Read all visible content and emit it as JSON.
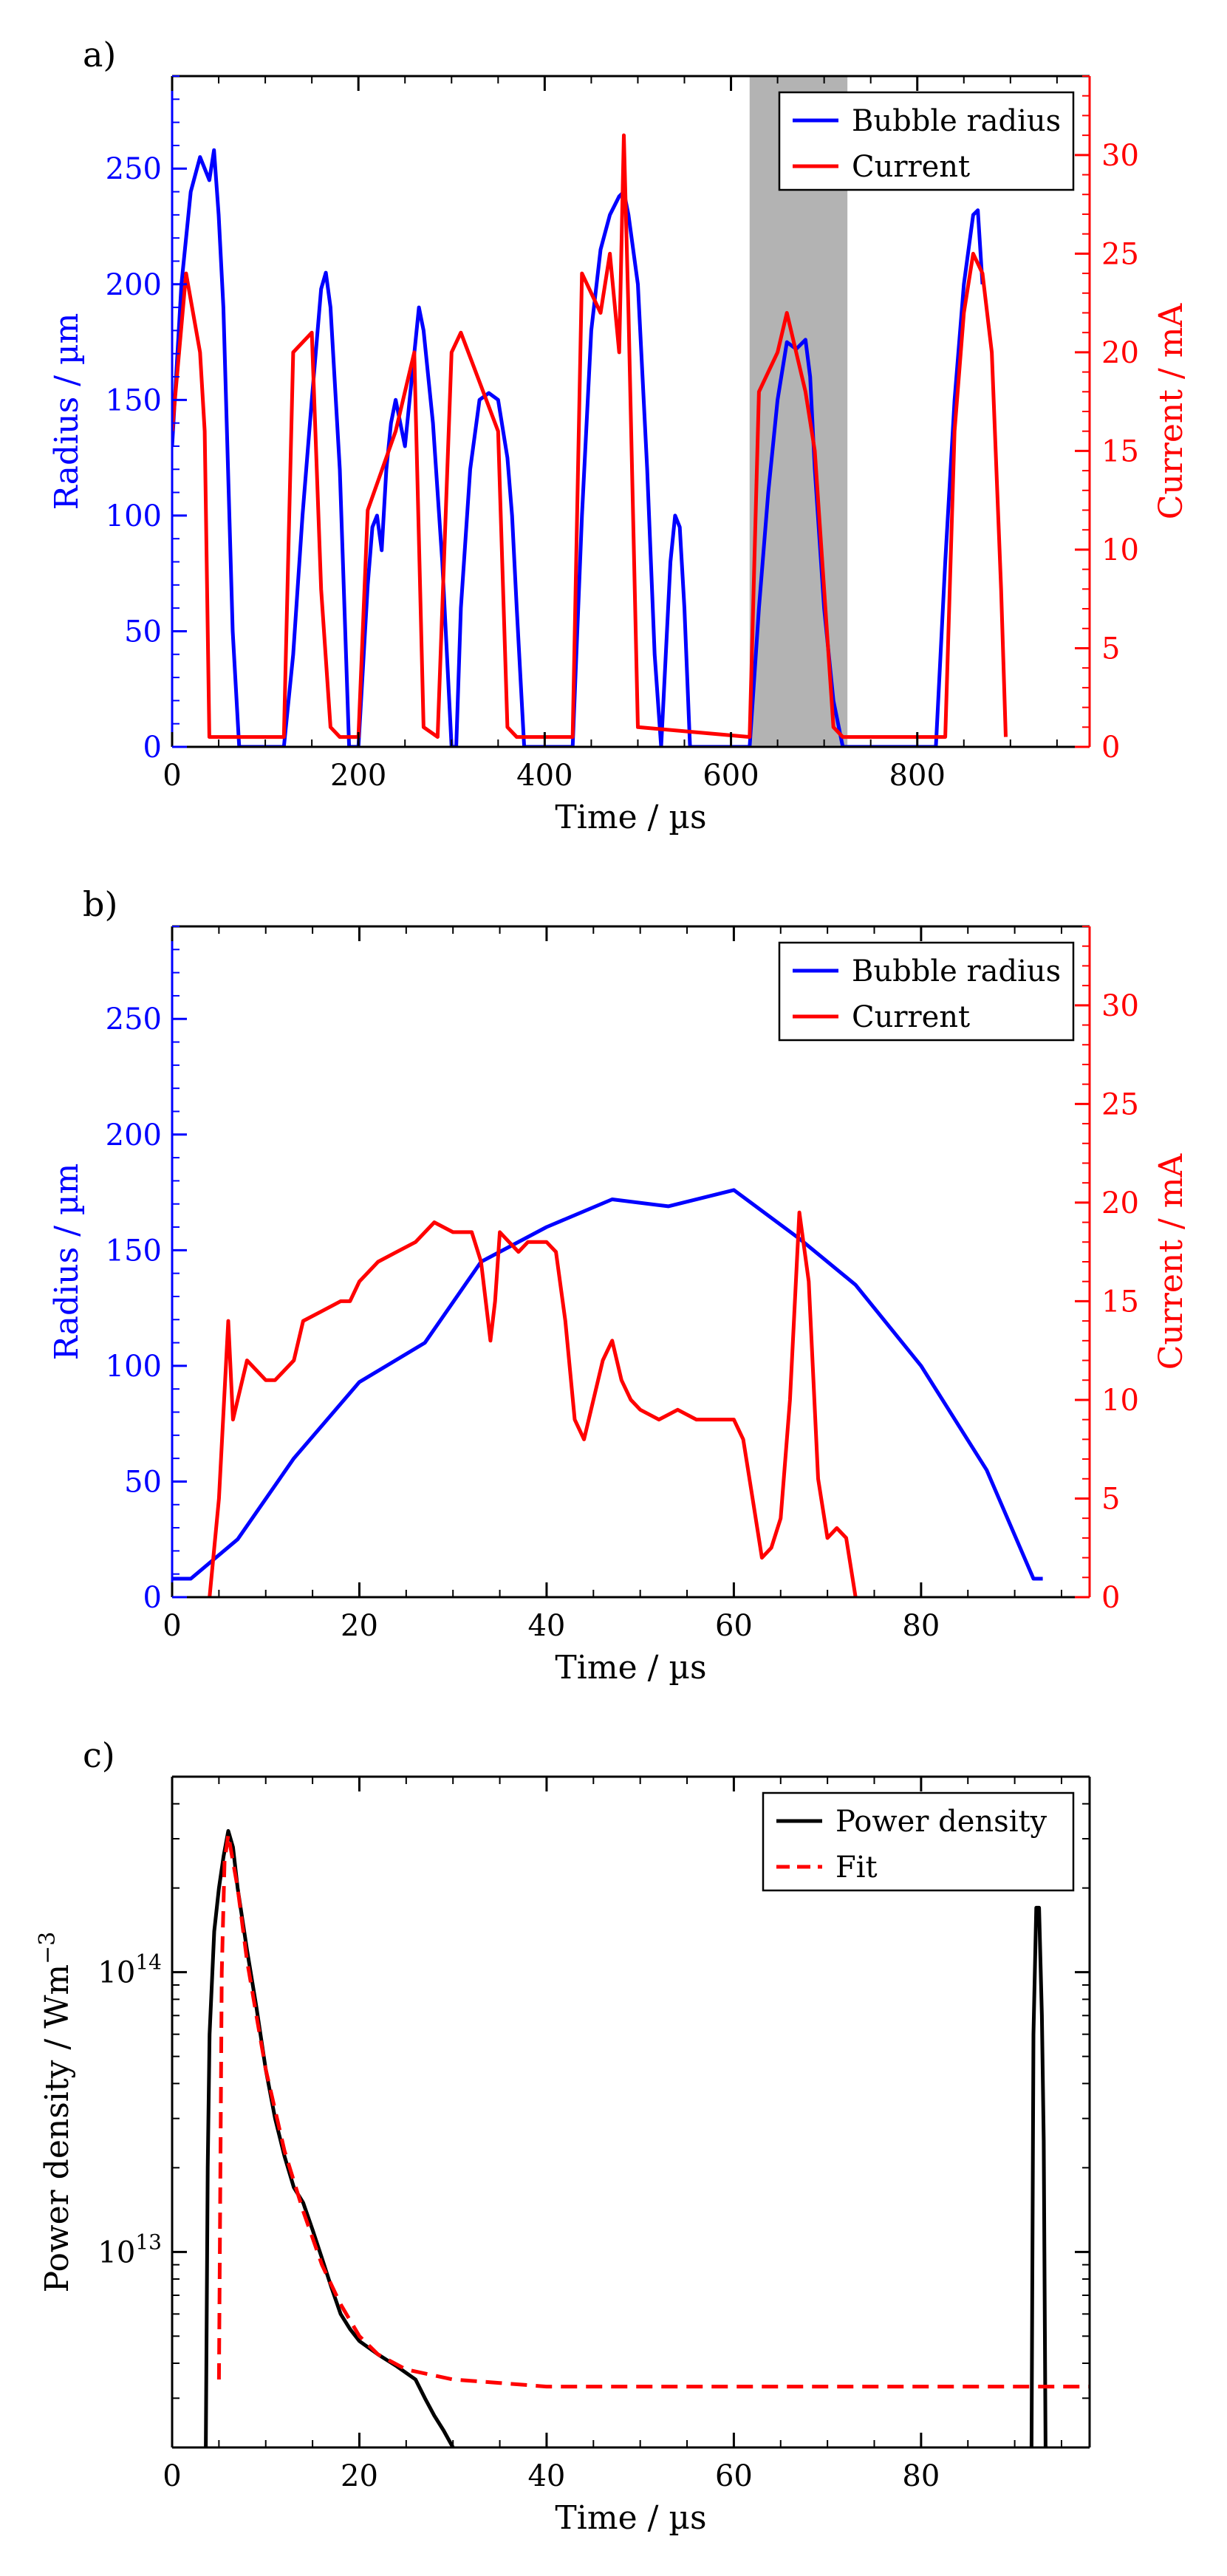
{
  "figure": {
    "panels": [
      "a)",
      "b)",
      "c)"
    ]
  },
  "colors": {
    "radius": "#0000ff",
    "current": "#ff0000",
    "power": "#000000",
    "fit": "#ff0000",
    "shade": "#b3b3b3"
  },
  "chart_data": [
    {
      "panel": "a)",
      "type": "line",
      "xlabel": "Time / µs",
      "ylabel": "Radius / µm",
      "y2label": "Current / mA",
      "xlim": [
        0,
        985
      ],
      "ylim": [
        0,
        290
      ],
      "y2lim": [
        0,
        34
      ],
      "xticks": [
        0,
        200,
        400,
        600,
        800
      ],
      "yticks": [
        0,
        50,
        100,
        150,
        200,
        250
      ],
      "y2ticks": [
        0,
        5,
        10,
        15,
        20,
        25,
        30
      ],
      "shaded_region": [
        620,
        725
      ],
      "legend": [
        "Bubble radius",
        "Current"
      ],
      "series": [
        {
          "name": "Bubble radius",
          "axis": "left",
          "x": [
            0,
            10,
            20,
            30,
            35,
            40,
            45,
            50,
            55,
            60,
            65,
            72,
            120,
            130,
            140,
            150,
            160,
            165,
            170,
            180,
            185,
            190,
            200,
            210,
            215,
            220,
            225,
            230,
            235,
            240,
            245,
            250,
            255,
            260,
            265,
            270,
            280,
            290,
            300,
            305,
            310,
            320,
            330,
            340,
            350,
            360,
            365,
            370,
            378,
            430,
            440,
            450,
            460,
            470,
            480,
            485,
            490,
            500,
            510,
            518,
            525,
            535,
            540,
            545,
            550,
            556,
            620,
            630,
            640,
            650,
            660,
            670,
            680,
            685,
            690,
            700,
            710,
            720,
            820,
            830,
            840,
            850,
            860,
            865,
            870
          ],
          "values": [
            130,
            200,
            240,
            255,
            250,
            245,
            258,
            230,
            190,
            120,
            50,
            0,
            0,
            40,
            100,
            150,
            198,
            205,
            190,
            120,
            60,
            0,
            0,
            70,
            95,
            100,
            85,
            120,
            140,
            150,
            140,
            130,
            150,
            170,
            190,
            180,
            140,
            80,
            0,
            0,
            60,
            120,
            150,
            153,
            150,
            125,
            100,
            60,
            0,
            0,
            100,
            180,
            215,
            230,
            238,
            240,
            230,
            200,
            120,
            40,
            0,
            80,
            100,
            95,
            60,
            0,
            0,
            60,
            110,
            150,
            175,
            172,
            176,
            160,
            120,
            60,
            20,
            0,
            0,
            80,
            150,
            200,
            230,
            232,
            200
          ]
        },
        {
          "name": "Current",
          "axis": "right",
          "x": [
            0,
            15,
            30,
            35,
            40,
            120,
            130,
            150,
            160,
            170,
            180,
            200,
            210,
            240,
            260,
            270,
            285,
            300,
            310,
            350,
            360,
            370,
            430,
            440,
            460,
            470,
            480,
            485,
            490,
            500,
            620,
            630,
            650,
            660,
            680,
            690,
            700,
            710,
            720,
            830,
            840,
            850,
            860,
            870,
            880,
            890,
            895
          ],
          "values": [
            16,
            24,
            20,
            16,
            0.5,
            0.5,
            20,
            21,
            8,
            1,
            0.5,
            0.5,
            12,
            16,
            20,
            1,
            0.5,
            20,
            21,
            16,
            1,
            0.5,
            0.5,
            24,
            22,
            25,
            20,
            31,
            22,
            1,
            0.5,
            18,
            20,
            22,
            18,
            15,
            8,
            1,
            0.5,
            0.5,
            16,
            22,
            25,
            24,
            20,
            8,
            0.5
          ]
        }
      ]
    },
    {
      "panel": "b)",
      "type": "line",
      "xlabel": "Time / µs",
      "ylabel": "Radius / µm",
      "y2label": "Current / mA",
      "xlim": [
        0,
        98
      ],
      "ylim": [
        0,
        290
      ],
      "y2lim": [
        0,
        34
      ],
      "xticks": [
        0,
        20,
        40,
        60,
        80
      ],
      "yticks": [
        0,
        50,
        100,
        150,
        200,
        250
      ],
      "y2ticks": [
        0,
        5,
        10,
        15,
        20,
        25,
        30
      ],
      "legend": [
        "Bubble radius",
        "Current"
      ],
      "series": [
        {
          "name": "Bubble radius",
          "axis": "left",
          "x": [
            0,
            2,
            7,
            13,
            20,
            27,
            33,
            40,
            47,
            53,
            60,
            67,
            73,
            80,
            87,
            92,
            93
          ],
          "values": [
            8,
            8,
            25,
            60,
            93,
            110,
            145,
            160,
            172,
            169,
            176,
            155,
            135,
            100,
            55,
            8,
            8
          ],
          "markers": false
        },
        {
          "name": "Current",
          "axis": "right",
          "x": [
            4,
            5,
            6,
            6.5,
            7,
            8,
            9,
            10,
            11,
            12,
            13,
            14,
            16,
            18,
            19,
            20,
            22,
            24,
            26,
            28,
            30,
            32,
            33,
            34,
            34.5,
            35,
            36,
            37,
            38,
            40,
            41,
            42,
            43,
            44,
            45,
            46,
            47,
            48,
            49,
            50,
            52,
            54,
            56,
            58,
            60,
            61,
            62,
            63,
            64,
            65,
            66,
            67,
            68,
            69,
            70,
            71,
            72,
            73
          ],
          "values": [
            0,
            5,
            14,
            9,
            10,
            12,
            11.5,
            11,
            11,
            11.5,
            12,
            14,
            14.5,
            15,
            15,
            16,
            17,
            17.5,
            18,
            19,
            18.5,
            18.5,
            17,
            13,
            15,
            18.5,
            18,
            17.5,
            18,
            18,
            17.5,
            14,
            9,
            8,
            10,
            12,
            13,
            11,
            10,
            9.5,
            9,
            9.5,
            9,
            9,
            9,
            8,
            5,
            2,
            2.5,
            4,
            10,
            19.5,
            16,
            6,
            3,
            3.5,
            3,
            0
          ]
        }
      ]
    },
    {
      "panel": "c)",
      "type": "line",
      "yscale": "log",
      "xlabel": "Time / µs",
      "ylabel": "Power density / Wm",
      "ylabel_sup": "−3",
      "xlim": [
        0,
        98
      ],
      "ylim": [
        2000000000000,
        500000000000000
      ],
      "xticks": [
        0,
        20,
        40,
        60,
        80
      ],
      "yticks": [
        10000000000000,
        100000000000000
      ],
      "ytick_labels": [
        {
          "base": "10",
          "exp": "13"
        },
        {
          "base": "10",
          "exp": "14"
        }
      ],
      "legend": [
        "Power density",
        "Fit"
      ],
      "series": [
        {
          "name": "Power density",
          "style": "solid",
          "x": [
            3.6,
            3.8,
            4,
            4.5,
            5,
            5.5,
            6,
            6.5,
            7,
            8,
            9,
            10,
            11,
            12,
            13,
            14,
            15,
            16,
            17,
            18,
            19,
            20,
            22,
            24,
            26,
            27,
            28,
            29,
            30
          ],
          "values": [
            2000000000000,
            20000000000000,
            60000000000000,
            140000000000000,
            200000000000000,
            260000000000000,
            320000000000000,
            280000000000000,
            200000000000000,
            120000000000000,
            75000000000000,
            45000000000000,
            30000000000000,
            22000000000000,
            17000000000000,
            15000000000000,
            12000000000000,
            9500000000000,
            7500000000000,
            6000000000000,
            5300000000000,
            4800000000000,
            4300000000000,
            3900000000000,
            3500000000000,
            3000000000000,
            2600000000000,
            2300000000000,
            2000000000000
          ]
        },
        {
          "name": "Power density",
          "style": "solid",
          "x": [
            91.8,
            92,
            92.3,
            92.6,
            92.9,
            93.1,
            93.3,
            93.5
          ],
          "values": [
            2000000000000,
            60000000000000,
            170000000000000,
            170000000000000,
            70000000000000,
            25000000000000,
            2000000000000,
            2000000000000
          ]
        },
        {
          "name": "Fit",
          "style": "dashed",
          "x": [
            5,
            5.3,
            5.6,
            6,
            7,
            8,
            9,
            10,
            12,
            14,
            16,
            18,
            20,
            22,
            25,
            30,
            35,
            40,
            50,
            60,
            70,
            80,
            90,
            98
          ],
          "values": [
            3500000000000,
            100000000000000,
            250000000000000,
            310000000000000,
            200000000000000,
            110000000000000,
            70000000000000,
            45000000000000,
            23000000000000,
            14000000000000,
            9000000000000,
            6500000000000,
            5000000000000,
            4300000000000,
            3800000000000,
            3500000000000,
            3400000000000,
            3300000000000,
            3300000000000,
            3300000000000,
            3300000000000,
            3300000000000,
            3300000000000,
            3300000000000
          ]
        }
      ]
    }
  ]
}
